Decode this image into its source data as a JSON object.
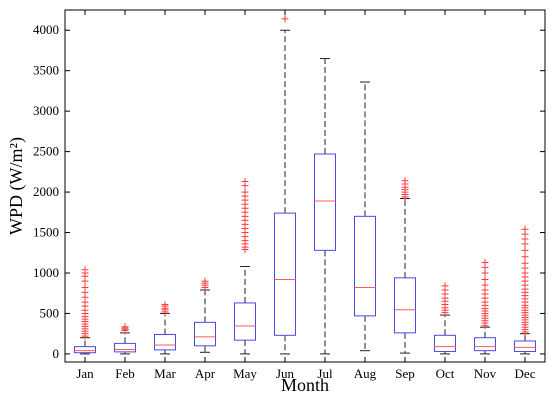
{
  "chart_data": {
    "type": "box",
    "title": "",
    "xlabel": "Month",
    "ylabel": "WPD (W/m²)",
    "ylim": [
      -100,
      4250
    ],
    "yticks": [
      0,
      500,
      1000,
      1500,
      2000,
      2500,
      3000,
      3500,
      4000
    ],
    "grid": false,
    "colors": {
      "box": "#4a4ae6",
      "median": "#ff5a5a",
      "whisker": "#222222",
      "outlier": "#ff3b3b"
    },
    "categories": [
      "Jan",
      "Feb",
      "Mar",
      "Apr",
      "May",
      "Jun",
      "Jul",
      "Aug",
      "Sep",
      "Oct",
      "Nov",
      "Dec"
    ],
    "boxes": [
      {
        "min": 0,
        "q1": 15,
        "median": 40,
        "q3": 90,
        "max": 200,
        "outliers": [
          220,
          250,
          280,
          310,
          340,
          370,
          400,
          430,
          460,
          500,
          540,
          590,
          640,
          700,
          760,
          820,
          900,
          960,
          1000,
          1040
        ]
      },
      {
        "min": 0,
        "q1": 25,
        "median": 55,
        "q3": 130,
        "max": 260,
        "outliers": [
          290,
          305,
          320,
          335
        ]
      },
      {
        "min": 0,
        "q1": 50,
        "median": 110,
        "q3": 240,
        "max": 500,
        "outliers": [
          520,
          545,
          565,
          590,
          610
        ]
      },
      {
        "min": 20,
        "q1": 100,
        "median": 210,
        "q3": 390,
        "max": 790,
        "outliers": [
          820,
          850,
          875,
          900
        ]
      },
      {
        "min": 0,
        "q1": 170,
        "median": 345,
        "q3": 630,
        "max": 1080,
        "outliers": [
          1290,
          1320,
          1360,
          1400,
          1450,
          1500,
          1550,
          1600,
          1650,
          1700,
          1750,
          1800,
          1850,
          1900,
          1950,
          2000,
          2080,
          2130
        ]
      },
      {
        "min": 0,
        "q1": 230,
        "median": 920,
        "q3": 1740,
        "max": 4000,
        "outliers": [
          4140
        ]
      },
      {
        "min": 0,
        "q1": 1280,
        "median": 1890,
        "q3": 2470,
        "max": 3650,
        "outliers": []
      },
      {
        "min": 40,
        "q1": 470,
        "median": 820,
        "q3": 1700,
        "max": 3360,
        "outliers": []
      },
      {
        "min": 10,
        "q1": 260,
        "median": 545,
        "q3": 940,
        "max": 1920,
        "outliers": [
          1940,
          1970,
          2000,
          2030,
          2060,
          2100,
          2140
        ]
      },
      {
        "min": 0,
        "q1": 30,
        "median": 90,
        "q3": 230,
        "max": 480,
        "outliers": [
          510,
          540,
          570,
          610,
          650,
          690,
          740,
          790,
          840
        ]
      },
      {
        "min": 0,
        "q1": 40,
        "median": 90,
        "q3": 200,
        "max": 330,
        "outliers": [
          350,
          380,
          410,
          440,
          470,
          500,
          530,
          560,
          600,
          640,
          690,
          740,
          790,
          850,
          920,
          1000,
          1070,
          1130
        ]
      },
      {
        "min": 0,
        "q1": 30,
        "median": 80,
        "q3": 160,
        "max": 250,
        "outliers": [
          270,
          300,
          330,
          360,
          390,
          420,
          450,
          480,
          510,
          540,
          570,
          600,
          640,
          680,
          720,
          760,
          800,
          850,
          900,
          950,
          1000,
          1060,
          1120,
          1200,
          1280,
          1360,
          1420,
          1480,
          1540
        ]
      }
    ]
  }
}
